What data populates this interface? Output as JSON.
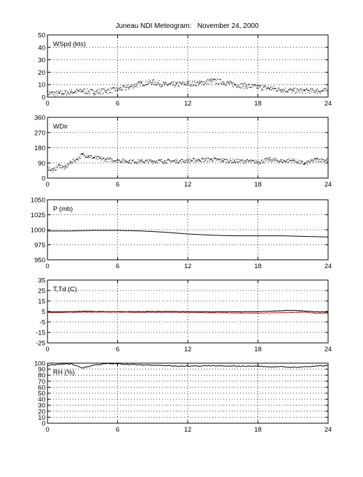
{
  "title": "Juneau NDI Meteogram:   November 24, 2000",
  "chart_data": [
    {
      "type": "scatter",
      "ylabel": "WSpd (kts)",
      "xlim": [
        0,
        24
      ],
      "ylim": [
        0,
        50
      ],
      "xticks": [
        0,
        6,
        12,
        18,
        24
      ],
      "yticks": [
        0,
        10,
        20,
        30,
        40,
        50
      ],
      "grid": true,
      "series": [
        {
          "color": "#000000",
          "x": [
            0,
            1,
            2,
            3,
            4,
            5,
            6,
            7,
            8,
            9,
            10,
            11,
            12,
            13,
            14,
            15,
            16,
            17,
            18,
            19,
            20,
            21,
            22,
            23,
            24
          ],
          "values": [
            3,
            3,
            4,
            5,
            4,
            5,
            6,
            8,
            11,
            12,
            10,
            10,
            11,
            11,
            13,
            12,
            10,
            9,
            8,
            7,
            6,
            5,
            5,
            5,
            5
          ]
        }
      ]
    },
    {
      "type": "scatter",
      "ylabel": "WDir",
      "xlim": [
        0,
        24
      ],
      "ylim": [
        0,
        360
      ],
      "xticks": [
        0,
        6,
        12,
        18,
        24
      ],
      "yticks": [
        0,
        90,
        180,
        270,
        360
      ],
      "grid": true,
      "series": [
        {
          "color": "#000000",
          "x": [
            0,
            0.5,
            1,
            1.5,
            2,
            2.5,
            3,
            3.5,
            4,
            4.5,
            5,
            6,
            7,
            8,
            9,
            10,
            11,
            12,
            13,
            14,
            15,
            16,
            17,
            18,
            19,
            20,
            21,
            22,
            23,
            24
          ],
          "values": [
            60,
            45,
            75,
            60,
            95,
            110,
            140,
            130,
            120,
            115,
            110,
            105,
            100,
            98,
            100,
            100,
            100,
            102,
            108,
            110,
            105,
            100,
            100,
            95,
            110,
            100,
            105,
            85,
            110,
            105
          ]
        }
      ]
    },
    {
      "type": "line",
      "ylabel": "P (mb)",
      "xlim": [
        0,
        24
      ],
      "ylim": [
        950,
        1050
      ],
      "xticks": [
        0,
        6,
        12,
        18,
        24
      ],
      "yticks": [
        950,
        975,
        1000,
        1025,
        1050
      ],
      "grid": true,
      "series": [
        {
          "color": "#000000",
          "x": [
            0,
            2,
            4,
            6,
            8,
            10,
            12,
            14,
            16,
            18,
            20,
            22,
            24
          ],
          "values": [
            998,
            998,
            999,
            999,
            998,
            996,
            993,
            991,
            990,
            990,
            990,
            989,
            988
          ]
        }
      ]
    },
    {
      "type": "line",
      "ylabel": "T,Td (C)",
      "xlim": [
        0,
        24
      ],
      "ylim": [
        -25,
        35
      ],
      "xticks": [
        0,
        6,
        12,
        18,
        24
      ],
      "yticks": [
        -25,
        -15,
        -5,
        5,
        15,
        25,
        35
      ],
      "grid": true,
      "series": [
        {
          "color": "#000000",
          "x": [
            0,
            2,
            3,
            4,
            6,
            8,
            10,
            12,
            14,
            16,
            18,
            20,
            21,
            22,
            23,
            24
          ],
          "values": [
            4.5,
            4.8,
            5.3,
            5.0,
            4.8,
            4.9,
            5.1,
            4.9,
            4.6,
            4.7,
            4.8,
            5.8,
            6.2,
            5.5,
            4.6,
            4.2
          ]
        },
        {
          "color": "#ff0000",
          "x": [
            0,
            2,
            4,
            6,
            8,
            10,
            12,
            14,
            16,
            18,
            20,
            22,
            23,
            24
          ],
          "values": [
            4.0,
            4.2,
            4.4,
            4.3,
            4.2,
            4.2,
            4.1,
            3.8,
            3.6,
            3.4,
            3.8,
            4.4,
            3.2,
            3.6
          ]
        }
      ]
    },
    {
      "type": "line",
      "ylabel": "RH (%)",
      "xlim": [
        0,
        24
      ],
      "ylim": [
        0,
        100
      ],
      "xticks": [
        0,
        6,
        12,
        18,
        24
      ],
      "yticks": [
        0,
        10,
        20,
        30,
        40,
        50,
        60,
        70,
        80,
        90,
        100
      ],
      "grid": true,
      "series": [
        {
          "color": "#000000",
          "x": [
            0,
            1,
            2,
            3,
            4,
            5,
            6,
            7,
            8,
            9,
            10,
            11,
            12,
            13,
            14,
            15,
            16,
            17,
            18,
            19,
            20,
            21,
            22,
            23,
            24
          ],
          "values": [
            96,
            98,
            99,
            92,
            97,
            99,
            99,
            98,
            97,
            97,
            96,
            95,
            95,
            95,
            96,
            95,
            95,
            95,
            95,
            94,
            94,
            93,
            94,
            95,
            96
          ]
        }
      ]
    }
  ]
}
